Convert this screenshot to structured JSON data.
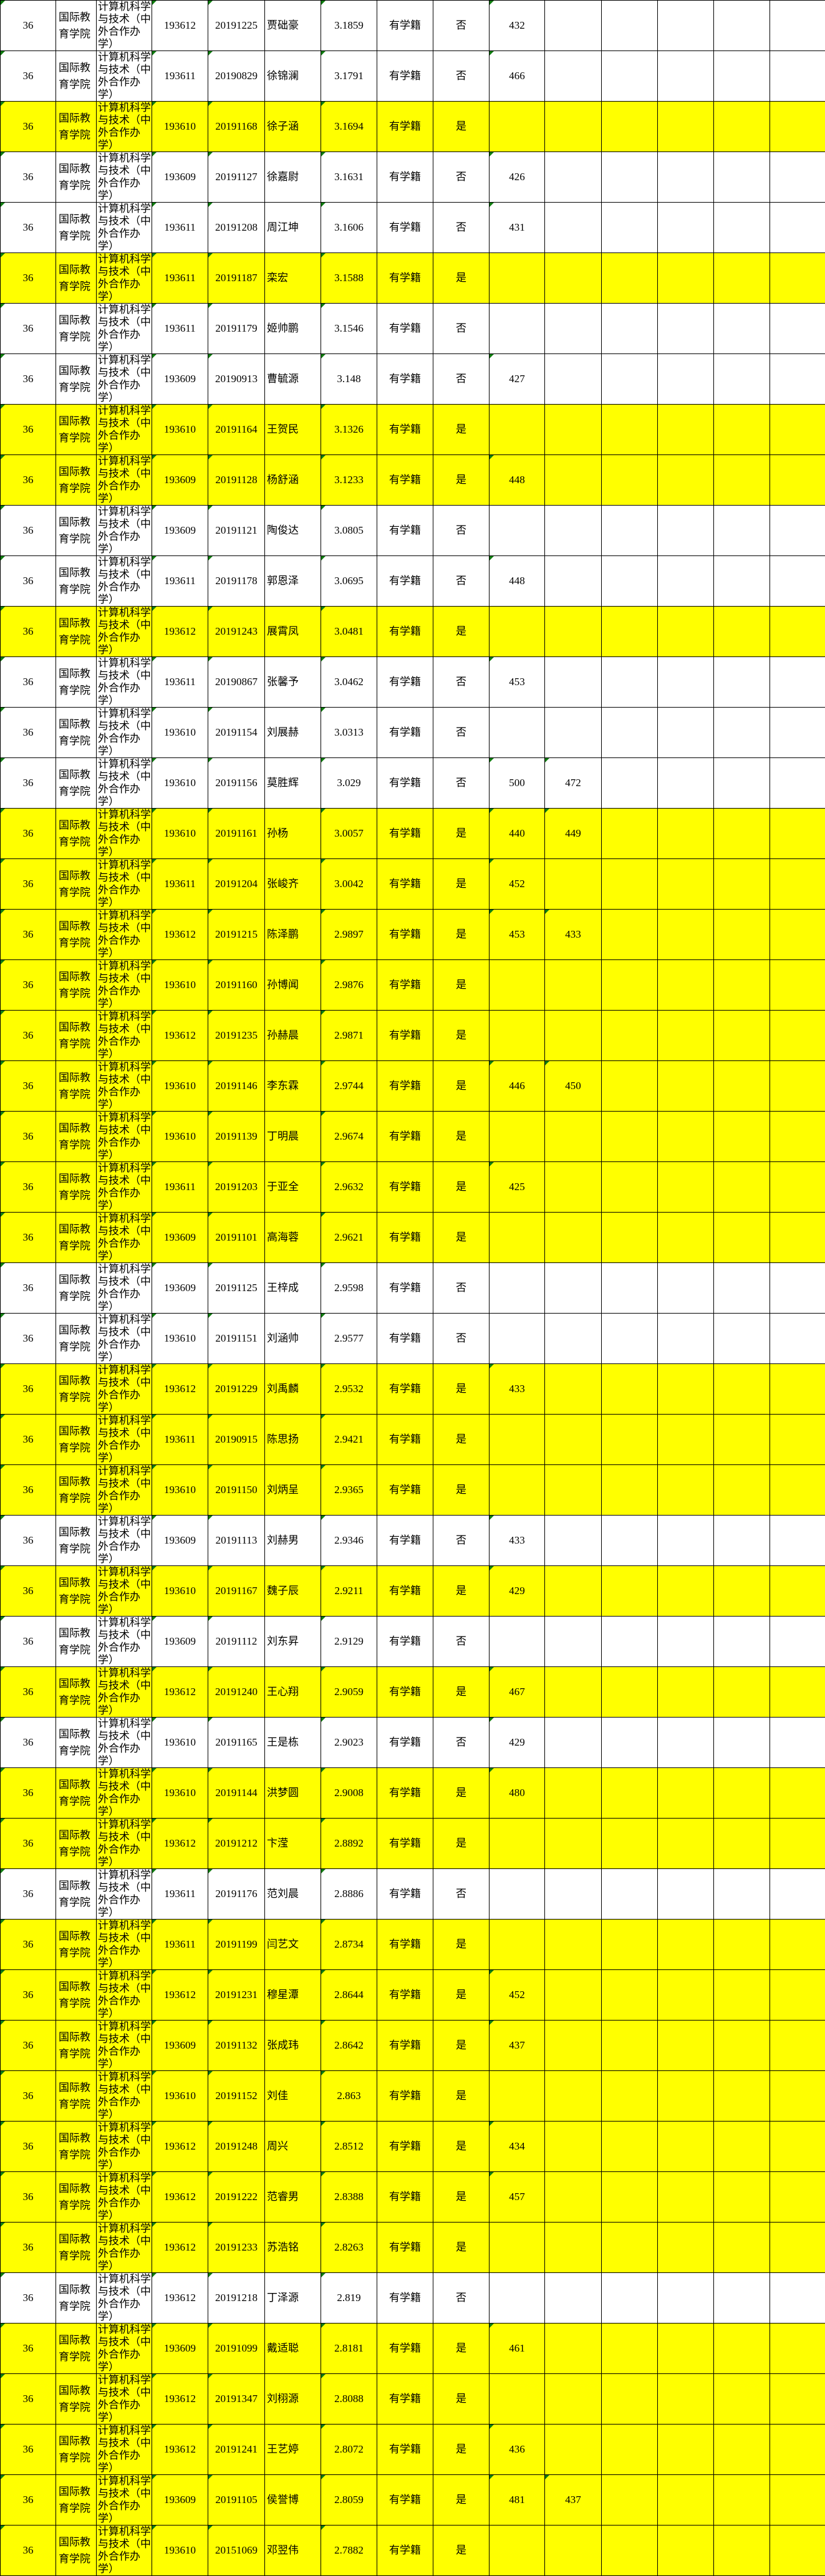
{
  "highlight_color": "#ffff00",
  "marker_color": "#107c10",
  "common": {
    "rank_col": "36",
    "college": "国际教育学院",
    "major": "计算机科学与技术（中外合作办学）",
    "status": "有学籍"
  },
  "columns": [
    "rank",
    "college",
    "major",
    "class",
    "student_id",
    "name",
    "gpa",
    "status",
    "flag",
    "score1",
    "score2",
    "extra1",
    "extra2",
    "extra3",
    "extra4"
  ],
  "rows": [
    [
      "193612",
      "20191225",
      "贾础豪",
      "3.1859",
      "否",
      "432",
      ""
    ],
    [
      "193611",
      "20190829",
      "徐锦澜",
      "3.1791",
      "否",
      "466",
      ""
    ],
    [
      "193610",
      "20191168",
      "徐子涵",
      "3.1694",
      "是",
      "",
      ""
    ],
    [
      "193609",
      "20191127",
      "徐嘉尉",
      "3.1631",
      "否",
      "426",
      ""
    ],
    [
      "193611",
      "20191208",
      "周江坤",
      "3.1606",
      "否",
      "431",
      ""
    ],
    [
      "193611",
      "20191187",
      "栾宏",
      "3.1588",
      "是",
      "",
      ""
    ],
    [
      "193611",
      "20191179",
      "姬帅鹏",
      "3.1546",
      "否",
      "",
      ""
    ],
    [
      "193609",
      "20190913",
      "曹毓源",
      "3.148",
      "否",
      "427",
      ""
    ],
    [
      "193610",
      "20191164",
      "王贺民",
      "3.1326",
      "是",
      "",
      ""
    ],
    [
      "193609",
      "20191128",
      "杨舒涵",
      "3.1233",
      "是",
      "448",
      ""
    ],
    [
      "193609",
      "20191121",
      "陶俊达",
      "3.0805",
      "否",
      "",
      ""
    ],
    [
      "193611",
      "20191178",
      "郭恩泽",
      "3.0695",
      "否",
      "448",
      ""
    ],
    [
      "193612",
      "20191243",
      "展霄凤",
      "3.0481",
      "是",
      "",
      ""
    ],
    [
      "193611",
      "20190867",
      "张馨予",
      "3.0462",
      "否",
      "453",
      ""
    ],
    [
      "193610",
      "20191154",
      "刘展赫",
      "3.0313",
      "否",
      "",
      ""
    ],
    [
      "193610",
      "20191156",
      "莫胜辉",
      "3.029",
      "否",
      "500",
      "472"
    ],
    [
      "193610",
      "20191161",
      "孙杨",
      "3.0057",
      "是",
      "440",
      "449"
    ],
    [
      "193611",
      "20191204",
      "张峻齐",
      "3.0042",
      "是",
      "452",
      ""
    ],
    [
      "193612",
      "20191215",
      "陈泽鹏",
      "2.9897",
      "是",
      "453",
      "433"
    ],
    [
      "193610",
      "20191160",
      "孙博闻",
      "2.9876",
      "是",
      "",
      ""
    ],
    [
      "193612",
      "20191235",
      "孙赫晨",
      "2.9871",
      "是",
      "",
      ""
    ],
    [
      "193610",
      "20191146",
      "李东霖",
      "2.9744",
      "是",
      "446",
      "450"
    ],
    [
      "193610",
      "20191139",
      "丁明晨",
      "2.9674",
      "是",
      "",
      ""
    ],
    [
      "193611",
      "20191203",
      "于亚全",
      "2.9632",
      "是",
      "425",
      ""
    ],
    [
      "193609",
      "20191101",
      "高海蓉",
      "2.9621",
      "是",
      "",
      ""
    ],
    [
      "193609",
      "20191125",
      "王梓成",
      "2.9598",
      "否",
      "",
      ""
    ],
    [
      "193610",
      "20191151",
      "刘涵帅",
      "2.9577",
      "否",
      "",
      ""
    ],
    [
      "193612",
      "20191229",
      "刘禹麟",
      "2.9532",
      "是",
      "433",
      ""
    ],
    [
      "193611",
      "20190915",
      "陈思扬",
      "2.9421",
      "是",
      "",
      ""
    ],
    [
      "193610",
      "20191150",
      "刘炳呈",
      "2.9365",
      "是",
      "",
      ""
    ],
    [
      "193609",
      "20191113",
      "刘赫男",
      "2.9346",
      "否",
      "433",
      ""
    ],
    [
      "193610",
      "20191167",
      "魏子辰",
      "2.9211",
      "是",
      "429",
      ""
    ],
    [
      "193609",
      "20191112",
      "刘东昇",
      "2.9129",
      "否",
      "",
      ""
    ],
    [
      "193612",
      "20191240",
      "王心翔",
      "2.9059",
      "是",
      "467",
      ""
    ],
    [
      "193610",
      "20191165",
      "王是栋",
      "2.9023",
      "否",
      "429",
      ""
    ],
    [
      "193610",
      "20191144",
      "洪梦圆",
      "2.9008",
      "是",
      "480",
      ""
    ],
    [
      "193612",
      "20191212",
      "卞滢",
      "2.8892",
      "是",
      "",
      ""
    ],
    [
      "193611",
      "20191176",
      "范刘晨",
      "2.8886",
      "否",
      "",
      ""
    ],
    [
      "193611",
      "20191199",
      "闫艺文",
      "2.8734",
      "是",
      "",
      ""
    ],
    [
      "193612",
      "20191231",
      "穆星潭",
      "2.8644",
      "是",
      "452",
      ""
    ],
    [
      "193609",
      "20191132",
      "张成玮",
      "2.8642",
      "是",
      "437",
      ""
    ],
    [
      "193610",
      "20191152",
      "刘佳",
      "2.863",
      "是",
      "",
      ""
    ],
    [
      "193612",
      "20191248",
      "周兴",
      "2.8512",
      "是",
      "434",
      ""
    ],
    [
      "193612",
      "20191222",
      "范睿男",
      "2.8388",
      "是",
      "457",
      ""
    ],
    [
      "193612",
      "20191233",
      "苏浩铭",
      "2.8263",
      "是",
      "",
      ""
    ],
    [
      "193612",
      "20191218",
      "丁泽源",
      "2.819",
      "否",
      "",
      ""
    ],
    [
      "193609",
      "20191099",
      "戴适聪",
      "2.8181",
      "是",
      "461",
      ""
    ],
    [
      "193612",
      "20191347",
      "刘栩源",
      "2.8088",
      "是",
      "",
      ""
    ],
    [
      "193612",
      "20191241",
      "王艺婷",
      "2.8072",
      "是",
      "436",
      ""
    ],
    [
      "193609",
      "20191105",
      "侯誉博",
      "2.8059",
      "是",
      "481",
      "437"
    ],
    [
      "193610",
      "20151069",
      "邓翌伟",
      "2.7882",
      "是",
      "",
      ""
    ]
  ]
}
